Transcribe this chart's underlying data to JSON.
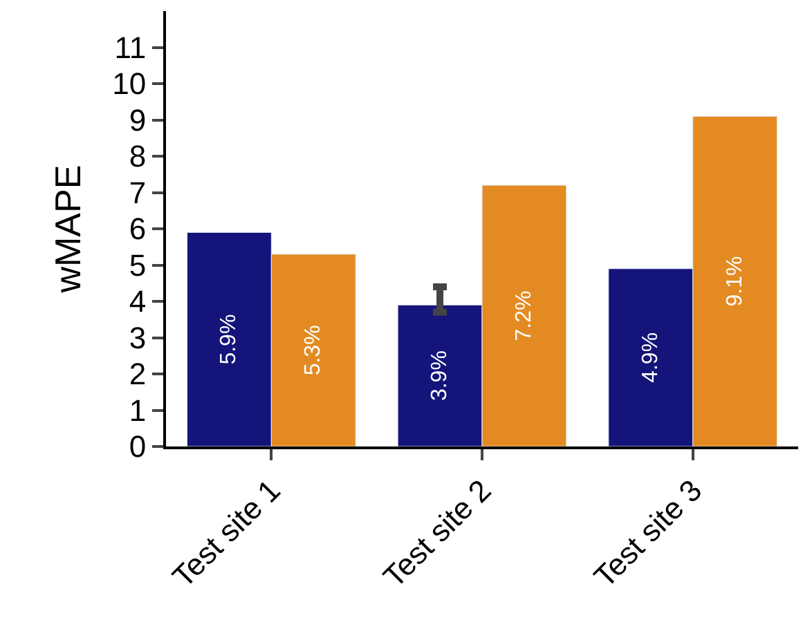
{
  "chart_data": {
    "type": "bar",
    "ylabel": "wMAPE",
    "categories": [
      "Test site 1",
      "Test site 2",
      "Test site 3"
    ],
    "series": [
      {
        "color": "#14147a",
        "values": [
          5.9,
          3.9,
          4.9
        ],
        "value_labels": [
          "5.9%",
          "3.9%",
          "4.9%"
        ],
        "errors": [
          null,
          [
            3.7,
            4.4
          ],
          null
        ]
      },
      {
        "color": "#e38b22",
        "values": [
          5.3,
          7.2,
          9.1
        ],
        "value_labels": [
          "5.3%",
          "7.2%",
          "9.1%"
        ]
      }
    ],
    "ylim": [
      0,
      12
    ],
    "yticks": [
      0,
      1,
      2,
      3,
      4,
      5,
      6,
      7,
      8,
      9,
      10,
      11
    ]
  }
}
